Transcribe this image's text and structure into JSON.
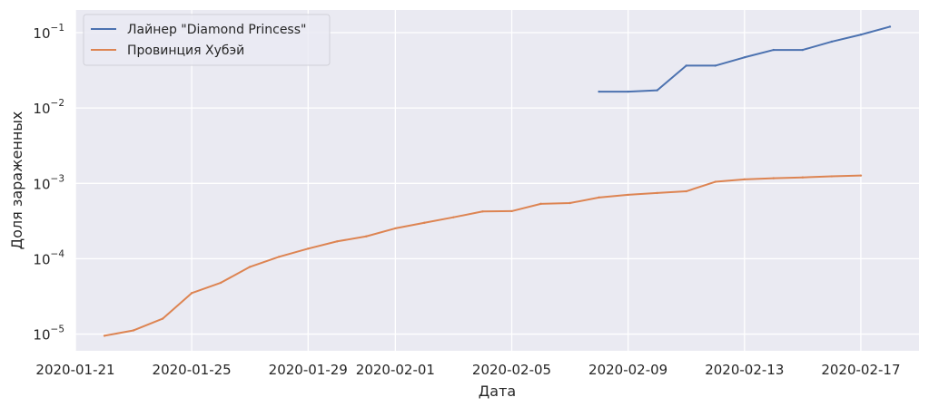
{
  "chart_data": {
    "type": "line",
    "title": "",
    "xlabel": "Дата",
    "ylabel": "Доля зараженных",
    "yscale": "log",
    "ylim": [
      6e-06,
      0.2
    ],
    "xlim": [
      "2020-01-21",
      "2020-02-19"
    ],
    "grid": true,
    "legend_position": "top-left",
    "x_ticks": [
      "2020-01-21",
      "2020-01-25",
      "2020-01-29",
      "2020-02-01",
      "2020-02-05",
      "2020-02-09",
      "2020-02-13",
      "2020-02-17"
    ],
    "y_ticks": [
      {
        "value": 0.1,
        "mantissa": "10",
        "exp": "−1"
      },
      {
        "value": 0.01,
        "mantissa": "10",
        "exp": "−2"
      },
      {
        "value": 0.001,
        "mantissa": "10",
        "exp": "−3"
      },
      {
        "value": 0.0001,
        "mantissa": "10",
        "exp": "−4"
      },
      {
        "value": 1e-05,
        "mantissa": "10",
        "exp": "−5"
      }
    ],
    "series": [
      {
        "name": "Лайнер \"Diamond Princess\"",
        "color": "#4c72b0",
        "x": [
          "2020-02-08",
          "2020-02-09",
          "2020-02-10",
          "2020-02-11",
          "2020-02-12",
          "2020-02-13",
          "2020-02-14",
          "2020-02-15",
          "2020-02-16",
          "2020-02-17",
          "2020-02-18"
        ],
        "y": [
          0.0165,
          0.0165,
          0.0172,
          0.0365,
          0.0365,
          0.047,
          0.059,
          0.059,
          0.076,
          0.094,
          0.12
        ]
      },
      {
        "name": "Провинция Хубэй",
        "color": "#dd8452",
        "x": [
          "2020-01-22",
          "2020-01-23",
          "2020-01-24",
          "2020-01-25",
          "2020-01-26",
          "2020-01-27",
          "2020-01-28",
          "2020-01-29",
          "2020-01-30",
          "2020-01-31",
          "2020-02-01",
          "2020-02-02",
          "2020-02-03",
          "2020-02-04",
          "2020-02-05",
          "2020-02-06",
          "2020-02-07",
          "2020-02-08",
          "2020-02-09",
          "2020-02-10",
          "2020-02-11",
          "2020-02-12",
          "2020-02-13",
          "2020-02-14",
          "2020-02-15",
          "2020-02-16",
          "2020-02-17"
        ],
        "y": [
          9.5e-06,
          1.12e-05,
          1.6e-05,
          3.5e-05,
          4.8e-05,
          7.8e-05,
          0.000106,
          0.000136,
          0.00017,
          0.000198,
          0.000253,
          0.0003,
          0.000355,
          0.000424,
          0.000428,
          0.000535,
          0.000548,
          0.00065,
          0.000705,
          0.000745,
          0.000785,
          0.00105,
          0.00113,
          0.00117,
          0.0012,
          0.00124,
          0.00127
        ]
      }
    ]
  }
}
